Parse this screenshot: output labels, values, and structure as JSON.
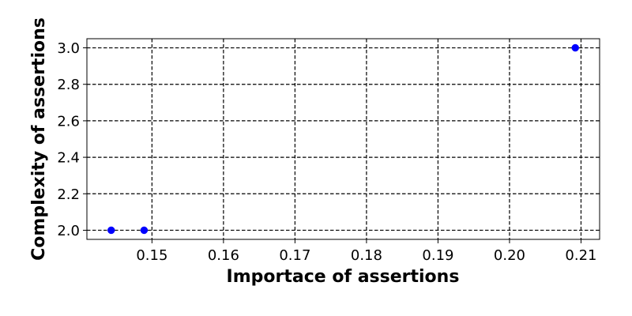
{
  "chart_data": {
    "type": "scatter",
    "xlabel": "Importace of assertions",
    "ylabel": "Complexity of assertions",
    "xlim": [
      0.1409,
      0.2126
    ],
    "ylim": [
      1.95,
      3.05
    ],
    "xticks": [
      0.15,
      0.16,
      0.17,
      0.18,
      0.19,
      0.2,
      0.21
    ],
    "xtick_labels": [
      "0.15",
      "0.16",
      "0.17",
      "0.18",
      "0.19",
      "0.20",
      "0.21"
    ],
    "yticks": [
      2.0,
      2.2,
      2.4,
      2.6,
      2.8,
      3.0
    ],
    "ytick_labels": [
      "2.0",
      "2.2",
      "2.4",
      "2.6",
      "2.8",
      "3.0"
    ],
    "grid": true,
    "grid_style": "dashed",
    "point_color": "#0000ff",
    "points": [
      {
        "x": 0.1443,
        "y": 2.0
      },
      {
        "x": 0.1489,
        "y": 2.0
      },
      {
        "x": 0.2092,
        "y": 3.0
      }
    ]
  }
}
